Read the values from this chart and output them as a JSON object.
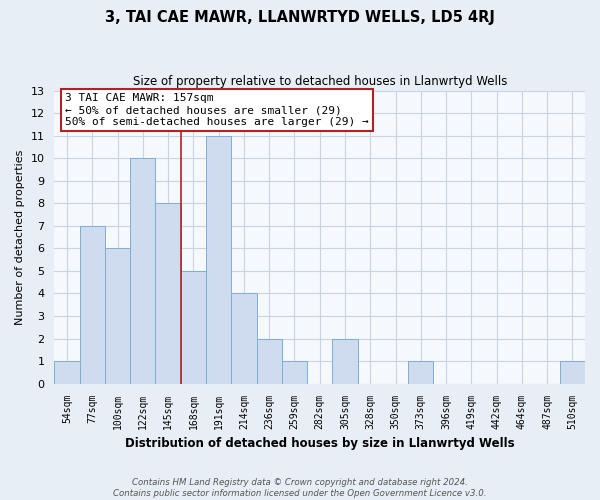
{
  "title": "3, TAI CAE MAWR, LLANWRTYD WELLS, LD5 4RJ",
  "subtitle": "Size of property relative to detached houses in Llanwrtyd Wells",
  "xlabel": "Distribution of detached houses by size in Llanwrtyd Wells",
  "ylabel": "Number of detached properties",
  "footnote1": "Contains HM Land Registry data © Crown copyright and database right 2024.",
  "footnote2": "Contains public sector information licensed under the Open Government Licence v3.0.",
  "bar_labels": [
    "54sqm",
    "77sqm",
    "100sqm",
    "122sqm",
    "145sqm",
    "168sqm",
    "191sqm",
    "214sqm",
    "236sqm",
    "259sqm",
    "282sqm",
    "305sqm",
    "328sqm",
    "350sqm",
    "373sqm",
    "396sqm",
    "419sqm",
    "442sqm",
    "464sqm",
    "487sqm",
    "510sqm"
  ],
  "bar_values": [
    1,
    7,
    6,
    10,
    8,
    5,
    11,
    4,
    2,
    1,
    0,
    2,
    0,
    0,
    1,
    0,
    0,
    0,
    0,
    0,
    1
  ],
  "bar_color": "#cfdcef",
  "bar_edge_color": "#7bafd4",
  "vline_x_idx": 5,
  "vline_color": "#b22222",
  "annotation_text_line1": "3 TAI CAE MAWR: 157sqm",
  "annotation_text_line2": "← 50% of detached houses are smaller (29)",
  "annotation_text_line3": "50% of semi-detached houses are larger (29) →",
  "ylim": [
    0,
    13
  ],
  "yticks": [
    0,
    1,
    2,
    3,
    4,
    5,
    6,
    7,
    8,
    9,
    10,
    11,
    12,
    13
  ],
  "bg_color": "#e8eef5",
  "plot_bg_color": "#f5f8fd",
  "grid_color": "#c8d4e3"
}
